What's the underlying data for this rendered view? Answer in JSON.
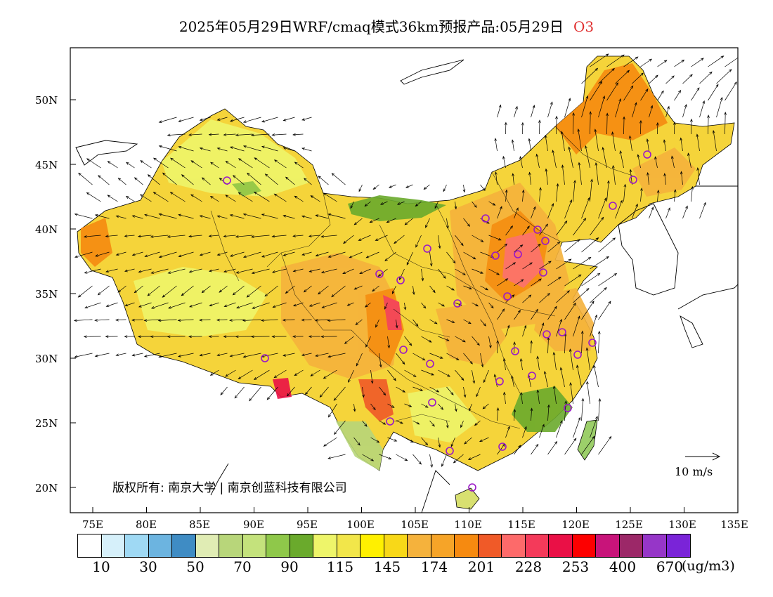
{
  "title": "2025年05月29日WRF/cmaq模式36km预报产品:05月29日",
  "species": "O3",
  "y_axis": [
    "50N",
    "45N",
    "40N",
    "35N",
    "30N",
    "25N",
    "20N"
  ],
  "x_axis": [
    "75E",
    "80E",
    "85E",
    "90E",
    "95E",
    "100E",
    "105E",
    "110E",
    "115E",
    "120E",
    "125E",
    "130E",
    "135E"
  ],
  "copyright": "版权所有: 南京大学 | 南京创蓝科技有限公司",
  "wind_scale": "10 m/s",
  "legend": {
    "colors": [
      "#ffffff",
      "#d6f0fa",
      "#9fd9f4",
      "#6cb4e0",
      "#3f8cc4",
      "#e0ecb4",
      "#b8d67a",
      "#c4e27c",
      "#8fc84a",
      "#6aaa2c",
      "#eef56a",
      "#f2e64a",
      "#fff000",
      "#f8d818",
      "#f5b23c",
      "#f6a428",
      "#f68a10",
      "#f05a28",
      "#fd6a6a",
      "#f43a5a",
      "#ea1046",
      "#fd0000",
      "#c8147a",
      "#9c2868",
      "#9636c8",
      "#7a24d8"
    ],
    "ticks": [
      "10",
      "30",
      "50",
      "70",
      "90",
      "115",
      "145",
      "174",
      "201",
      "228",
      "253",
      "400",
      "670"
    ],
    "unit": "(ug/m3)"
  },
  "stations": 30
}
